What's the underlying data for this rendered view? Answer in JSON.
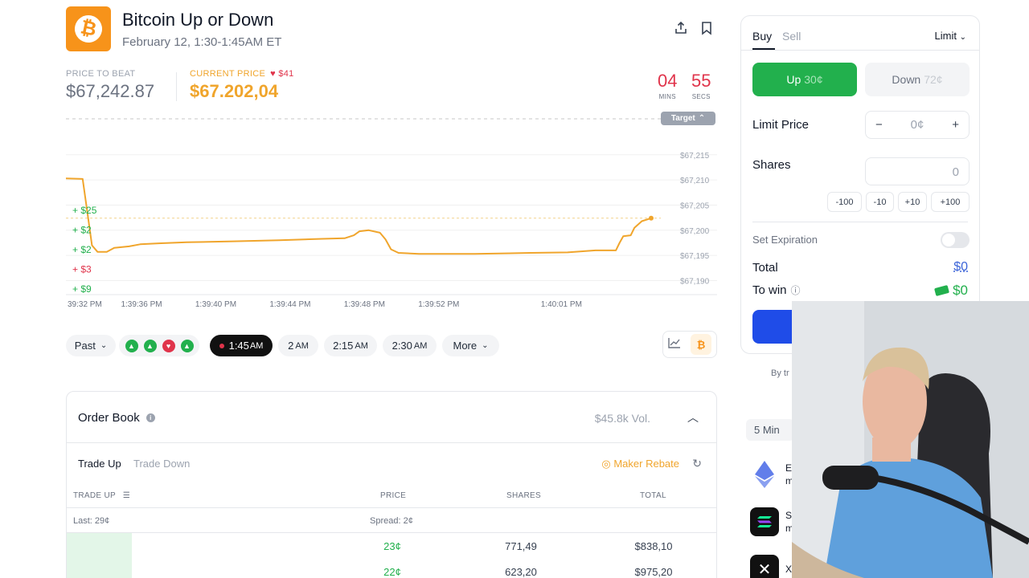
{
  "header": {
    "title": "Bitcoin Up or Down",
    "subtitle": "February 12, 1:30-1:45AM ET",
    "price_to_beat_label": "PRICE TO BEAT",
    "price_to_beat": "$67,242.87",
    "current_price_label": "CURRENT PRICE",
    "current_price_delta": "$41",
    "current_price": "$67.202,04",
    "timer": {
      "mins": "04",
      "mins_label": "MINS",
      "secs": "55",
      "secs_label": "SECS"
    },
    "icons": [
      "share-icon",
      "bookmark-icon"
    ]
  },
  "chart_data": {
    "type": "line",
    "target_label": "Target",
    "y_ticks": [
      "$67,215",
      "$67,210",
      "$67,205",
      "$67,200",
      "$67,195",
      "$67,190"
    ],
    "y_range": [
      67188,
      67218
    ],
    "x_ticks": [
      "39:32 PM",
      "1:39:36 PM",
      "1:39:40 PM",
      "1:39:44 PM",
      "1:39:48 PM",
      "1:39:52 PM",
      "1:40:01 PM"
    ],
    "left_annotations": [
      {
        "text": "+ $25",
        "color": "#22b04d"
      },
      {
        "text": "+ $2",
        "color": "#22b04d"
      },
      {
        "text": "+ $2",
        "color": "#22b04d"
      },
      {
        "text": "+ $3",
        "color": "#e0344b"
      },
      {
        "text": "+ $9",
        "color": "#22b04d"
      }
    ],
    "series": [
      {
        "color": "#f0a52c",
        "points": [
          [
            0,
            67210.3
          ],
          [
            0.9,
            67210.2
          ],
          [
            1.1,
            67205
          ],
          [
            1.4,
            67197
          ],
          [
            1.7,
            67195.7
          ],
          [
            2.2,
            67195.7
          ],
          [
            2.6,
            67196.5
          ],
          [
            3.4,
            67196.8
          ],
          [
            4.0,
            67197.2
          ],
          [
            5.0,
            67197.4
          ],
          [
            6.5,
            67197.6
          ],
          [
            9.0,
            67197.8
          ],
          [
            11.5,
            67198.0
          ],
          [
            13.8,
            67198.3
          ],
          [
            15.0,
            67198.4
          ],
          [
            15.5,
            67199.0
          ],
          [
            15.8,
            67199.8
          ],
          [
            16.3,
            67200.0
          ],
          [
            16.9,
            67199.5
          ],
          [
            17.2,
            67198.2
          ],
          [
            17.5,
            67196.2
          ],
          [
            17.9,
            67195.5
          ],
          [
            19.0,
            67195.3
          ],
          [
            22.0,
            67195.3
          ],
          [
            25.0,
            67195.5
          ],
          [
            27.0,
            67195.6
          ],
          [
            28.5,
            67196.0
          ],
          [
            29.6,
            67196.0
          ],
          [
            29.8,
            67197.5
          ],
          [
            30.0,
            67198.8
          ],
          [
            30.4,
            67199.0
          ],
          [
            30.6,
            67200.5
          ],
          [
            31.0,
            67201.8
          ],
          [
            31.5,
            67202.4
          ]
        ]
      }
    ],
    "x_range": [
      0,
      31.5
    ],
    "x_tick_pos": [
      0,
      4.0,
      8.0,
      12.0,
      16.0,
      20.0,
      26.6
    ],
    "price_to_beat_value": 67242.87,
    "current_price_value": 67202.04
  },
  "time_pills": {
    "past_label": "Past",
    "results": [
      "up",
      "up",
      "down",
      "up"
    ],
    "active": {
      "time": "1:45",
      "suffix": "AM"
    },
    "slots": [
      {
        "time": "2",
        "suffix": "AM"
      },
      {
        "time": "2:15",
        "suffix": "AM"
      },
      {
        "time": "2:30",
        "suffix": "AM"
      }
    ],
    "more_label": "More"
  },
  "order_book": {
    "title": "Order Book",
    "volume": "$45.8k Vol.",
    "tab_up": "Trade Up",
    "tab_down": "Trade Down",
    "rebate": "Maker Rebate",
    "columns": [
      "TRADE UP",
      "PRICE",
      "SHARES",
      "TOTAL"
    ],
    "last": "Last: 29¢",
    "spread": "Spread: 2¢",
    "rows": [
      {
        "price": "23¢",
        "shares": "771,49",
        "total": "$838,10",
        "depth": 0.1
      },
      {
        "price": "22¢",
        "shares": "623,20",
        "total": "$975,20",
        "depth": 0.1
      }
    ]
  },
  "trade_panel": {
    "buy": "Buy",
    "sell": "Sell",
    "order_type": "Limit",
    "up_label": "Up",
    "up_price": "30¢",
    "down_label": "Down",
    "down_price": "72¢",
    "limit_price_label": "Limit Price",
    "limit_minus": "−",
    "limit_value": "0¢",
    "limit_plus": "+",
    "shares_label": "Shares",
    "shares_value": "0",
    "quick": [
      "-100",
      "-10",
      "+10",
      "+100"
    ],
    "expiration_label": "Set Expiration",
    "total_label": "Total",
    "total_value": "$0",
    "to_win_label": "To win",
    "to_win_value": "$0",
    "by_text": "By tr"
  },
  "markets": {
    "timeframe": "5 Min",
    "items": [
      {
        "letter": "E",
        "sub": "m",
        "color": "#627eea",
        "icon": "ethereum-icon"
      },
      {
        "letter": "S",
        "sub": "m",
        "color": "#111111",
        "icon": "solana-icon"
      },
      {
        "letter": "X",
        "sub": "",
        "color": "#111111",
        "icon": "xrp-icon"
      }
    ]
  }
}
